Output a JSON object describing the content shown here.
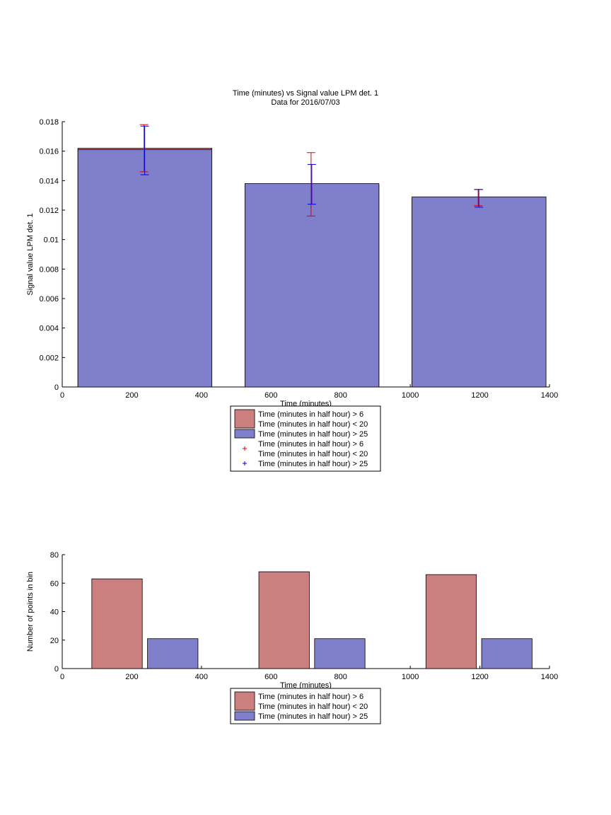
{
  "page": {
    "title_line1": "Time (minutes) vs Signal value LPM det. 1",
    "title_line2": "Data for 2016/07/03"
  },
  "colors": {
    "red_fill": "#cc7f7f",
    "blue_fill": "#7f7fcc",
    "red_err": "#dd0000",
    "blue_err": "#0000dd"
  },
  "chart_data": [
    {
      "type": "bar",
      "title": "Time (minutes) vs Signal value LPM det. 1",
      "subtitle": "Data for 2016/07/03",
      "xlabel": "Time (minutes)",
      "ylabel": "Signal value LPM det. 1",
      "xlim": [
        0,
        1400
      ],
      "ylim": [
        0,
        0.018
      ],
      "xticks": [
        0,
        200,
        400,
        600,
        800,
        1000,
        1200,
        1400
      ],
      "yticks": [
        0,
        0.002,
        0.004,
        0.006,
        0.008,
        0.01,
        0.012,
        0.014,
        0.016,
        0.018
      ],
      "ytick_labels": [
        "0",
        "0.002",
        "0.004",
        "0.006",
        "0.008",
        "0.01",
        "0.012",
        "0.014",
        "0.016",
        "0.018"
      ],
      "grid": false,
      "legend_position": "below",
      "bin_ranges": [
        [
          45,
          430
        ],
        [
          525,
          910
        ],
        [
          1005,
          1390
        ]
      ],
      "series": [
        {
          "name": "Time (minutes in half hour) > 6\nTime (minutes in half hour) < 20",
          "values": [
            0.0162,
            0.0137,
            0.0128
          ],
          "error_x": [
            235,
            715,
            1195
          ],
          "error_low": [
            0.0146,
            0.0116,
            0.0123
          ],
          "error_high": [
            0.0178,
            0.0159,
            0.0134
          ]
        },
        {
          "name": "Time (minutes in half hour) > 25",
          "values": [
            0.0161,
            0.0138,
            0.0129
          ],
          "error_x": [
            237,
            717,
            1197
          ],
          "error_low": [
            0.0144,
            0.0124,
            0.0122
          ],
          "error_high": [
            0.0177,
            0.0151,
            0.0134
          ]
        }
      ],
      "legend": [
        {
          "kind": "patch",
          "color": "red",
          "label": "Time (minutes in half hour) > 6\nTime (minutes in half hour) < 20"
        },
        {
          "kind": "patch",
          "color": "blue",
          "label": "Time (minutes in half hour) > 25"
        },
        {
          "kind": "marker",
          "color": "red",
          "label": "Time (minutes in half hour) > 6\nTime (minutes in half hour) < 20"
        },
        {
          "kind": "marker",
          "color": "blue",
          "label": "Time (minutes in half hour) > 25"
        }
      ]
    },
    {
      "type": "bar",
      "xlabel": "Time (minutes)",
      "ylabel": "Number of points in bin",
      "xlim": [
        0,
        1400
      ],
      "ylim": [
        0,
        80
      ],
      "xticks": [
        0,
        200,
        400,
        600,
        800,
        1000,
        1200,
        1400
      ],
      "yticks": [
        0,
        20,
        40,
        60,
        80
      ],
      "ytick_labels": [
        "0",
        "20",
        "40",
        "60",
        "80"
      ],
      "grid": false,
      "legend_position": "below",
      "series": [
        {
          "name": "Time (minutes in half hour) > 6\nTime (minutes in half hour) < 20",
          "bin_ranges": [
            [
              85,
              230
            ],
            [
              565,
              710
            ],
            [
              1045,
              1190
            ]
          ],
          "values": [
            63,
            68,
            66
          ]
        },
        {
          "name": "Time (minutes in half hour) > 25",
          "bin_ranges": [
            [
              245,
              390
            ],
            [
              725,
              870
            ],
            [
              1205,
              1350
            ]
          ],
          "values": [
            21,
            21,
            21
          ]
        }
      ],
      "legend": [
        {
          "kind": "patch",
          "color": "red",
          "label": "Time (minutes in half hour) > 6\nTime (minutes in half hour) < 20"
        },
        {
          "kind": "patch",
          "color": "blue",
          "label": "Time (minutes in half hour) > 25"
        }
      ]
    }
  ]
}
